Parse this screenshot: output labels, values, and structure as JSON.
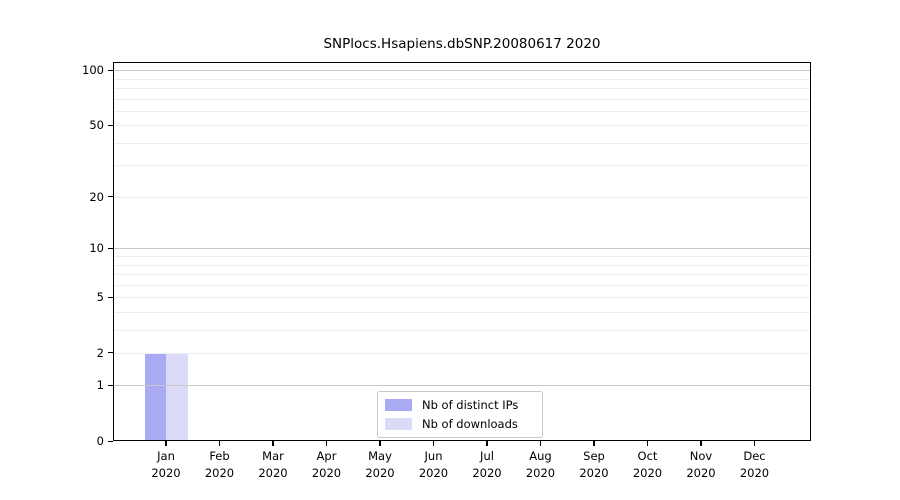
{
  "title": "SNPlocs.Hsapiens.dbSNP.20080617 2020",
  "chart_data": {
    "type": "bar",
    "title": "SNPlocs.Hsapiens.dbSNP.20080617 2020",
    "xlabel": "",
    "ylabel": "",
    "yscale": "log1p",
    "ylim": [
      0,
      111
    ],
    "yticks": [
      0,
      1,
      2,
      5,
      10,
      20,
      50,
      100
    ],
    "grid": {
      "major": [
        1,
        10,
        100
      ],
      "minor": [
        2,
        3,
        4,
        5,
        6,
        7,
        8,
        9,
        20,
        30,
        40,
        50,
        60,
        70,
        80,
        90
      ]
    },
    "categories": [
      "Jan",
      "Feb",
      "Mar",
      "Apr",
      "May",
      "Jun",
      "Jul",
      "Aug",
      "Sep",
      "Oct",
      "Nov",
      "Dec"
    ],
    "year": "2020",
    "series": [
      {
        "name": "Nb of distinct IPs",
        "color": "#a9a9f4",
        "values": [
          2,
          0,
          0,
          0,
          0,
          0,
          0,
          0,
          0,
          0,
          0,
          0
        ]
      },
      {
        "name": "Nb of downloads",
        "color": "#dbdbf8",
        "values": [
          2,
          0,
          0,
          0,
          0,
          0,
          0,
          0,
          0,
          0,
          0,
          0
        ]
      }
    ],
    "legend_position": "inside-bottom-center",
    "grid_above_bars": true
  },
  "legend": {
    "items": [
      {
        "label": "Nb of distinct IPs"
      },
      {
        "label": "Nb of downloads"
      }
    ]
  },
  "colors": {
    "major_grid": "#c9c9c9",
    "minor_grid": "#ededed",
    "axis": "#000000",
    "legend_border": "#c8c8c8",
    "background": "#ffffff"
  }
}
